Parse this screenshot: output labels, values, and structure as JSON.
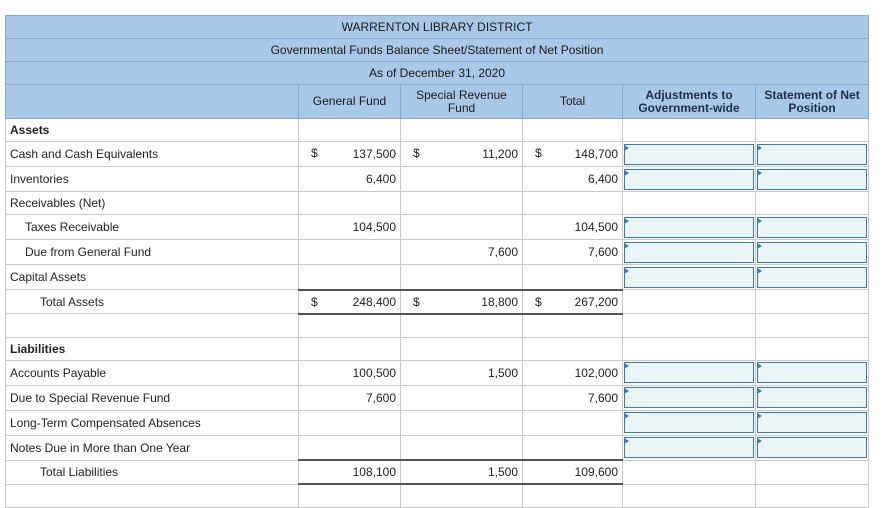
{
  "header": {
    "title": "WARRENTON LIBRARY DISTRICT",
    "subtitle": "Governmental Funds Balance Sheet/Statement of Net Position",
    "date": "As of December 31, 2020"
  },
  "columns": [
    "General Fund",
    "Special Revenue Fund",
    "Total",
    "Adjustments to Government-wide",
    "Statement of Net Position"
  ],
  "rows": [
    {
      "label": "Assets",
      "kind": "section"
    },
    {
      "label": "Cash and Cash Equivalents",
      "kind": "item",
      "currency": "$",
      "values": [
        "137,500",
        "11,200",
        "148,700"
      ],
      "input": true
    },
    {
      "label": "Inventories",
      "kind": "item",
      "values": [
        "6,400",
        null,
        "6,400"
      ],
      "input": true
    },
    {
      "label": "Receivables (Net)",
      "kind": "item"
    },
    {
      "label": "Taxes Receivable",
      "kind": "item",
      "indent": 1,
      "values": [
        "104,500",
        null,
        "104,500"
      ],
      "input": true
    },
    {
      "label": "Due from General Fund",
      "kind": "item",
      "indent": 1,
      "values": [
        null,
        "7,600",
        "7,600"
      ],
      "input": true
    },
    {
      "label": "Capital Assets",
      "kind": "item",
      "input": true
    },
    {
      "label": "Total Assets",
      "kind": "total",
      "currency": "$",
      "values": [
        "248,400",
        "18,800",
        "267,200"
      ]
    },
    null,
    {
      "label": "Liabilities",
      "kind": "section"
    },
    {
      "label": "Accounts Payable",
      "kind": "item",
      "values": [
        "100,500",
        "1,500",
        "102,000"
      ],
      "input": true
    },
    {
      "label": "Due to Special Revenue Fund",
      "kind": "item",
      "values": [
        "7,600",
        null,
        "7,600"
      ],
      "input": true
    },
    {
      "label": "Long-Term Compensated Absences",
      "kind": "item",
      "input": true
    },
    {
      "label": "Notes Due in More than One Year",
      "kind": "item",
      "input": true
    },
    {
      "label": "Total Liabilities",
      "kind": "total",
      "values": [
        "108,100",
        "1,500",
        "109,600"
      ]
    }
  ]
}
